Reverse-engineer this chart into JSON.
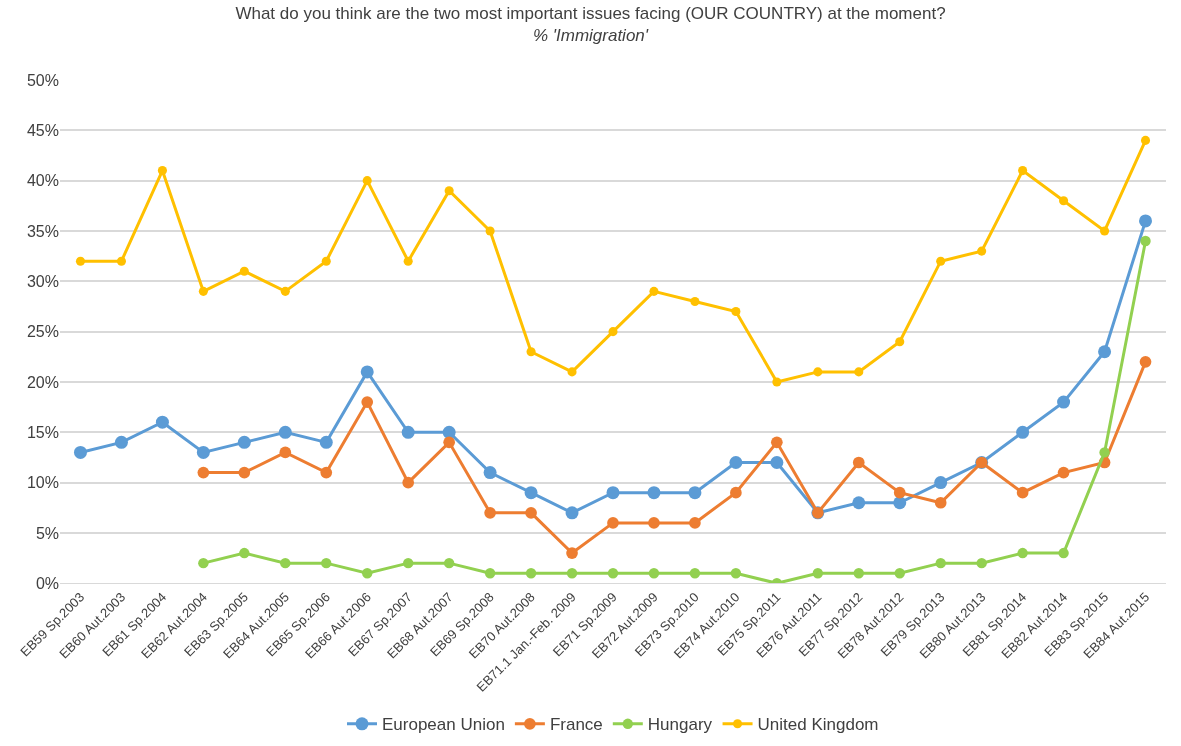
{
  "chart_data": {
    "type": "line",
    "title": "What do you think are the two most important issues facing (OUR COUNTRY) at the moment?",
    "subtitle": "% 'Immigration'",
    "categories": [
      "EB59 Sp.2003",
      "EB60 Aut.2003",
      "EB61 Sp.2004",
      "EB62 Aut.2004",
      "EB63 Sp.2005",
      "EB64 Aut.2005",
      "EB65 Sp.2006",
      "EB66 Aut.2006",
      "EB67 Sp.2007",
      "EB68 Aut.2007",
      "EB69 Sp.2008",
      "EB70 Aut.2008",
      "EB71.1 Jan.-Feb. 2009",
      "EB71 Sp.2009",
      "EB72 Aut.2009",
      "EB73 Sp.2010",
      "EB74 Aut.2010",
      "EB75 Sp.2011",
      "EB76 Aut.2011",
      "EB77 Sp.2012",
      "EB78 Aut.2012",
      "EB79 Sp.2013",
      "EB80 Aut.2013",
      "EB81 Sp.2014",
      "EB82 Aut.2014",
      "EB83 Sp.2015",
      "EB84 Aut.2015"
    ],
    "series": [
      {
        "name": "European Union",
        "color": "#5b9bd5",
        "values": [
          13,
          14,
          16,
          13,
          14,
          15,
          14,
          21,
          15,
          15,
          11,
          9,
          7,
          9,
          9,
          9,
          12,
          12,
          7,
          8,
          8,
          10,
          12,
          15,
          18,
          23,
          36
        ]
      },
      {
        "name": "France",
        "color": "#ed7d31",
        "values": [
          null,
          null,
          null,
          11,
          11,
          13,
          11,
          18,
          10,
          14,
          7,
          7,
          3,
          6,
          6,
          6,
          9,
          14,
          7,
          12,
          9,
          8,
          12,
          9,
          11,
          12,
          22
        ]
      },
      {
        "name": "Hungary",
        "color": "#92d050",
        "values": [
          null,
          null,
          null,
          2,
          3,
          2,
          2,
          1,
          2,
          2,
          1,
          1,
          1,
          1,
          1,
          1,
          1,
          0,
          1,
          1,
          1,
          2,
          2,
          3,
          3,
          13,
          34
        ]
      },
      {
        "name": "United Kingdom",
        "color": "#ffc000",
        "values": [
          32,
          32,
          41,
          29,
          31,
          29,
          32,
          40,
          32,
          39,
          35,
          23,
          21,
          25,
          29,
          28,
          27,
          20,
          21,
          21,
          24,
          32,
          33,
          41,
          38,
          35,
          44
        ]
      }
    ],
    "ylim": [
      0,
      50
    ],
    "yticks": [
      {
        "value": 0,
        "label": "0%"
      },
      {
        "value": 5,
        "label": "5%"
      },
      {
        "value": 10,
        "label": "10%"
      },
      {
        "value": 15,
        "label": "15%"
      },
      {
        "value": 20,
        "label": "20%"
      },
      {
        "value": 25,
        "label": "25%"
      },
      {
        "value": 30,
        "label": "30%"
      },
      {
        "value": 35,
        "label": "35%"
      },
      {
        "value": 40,
        "label": "40%"
      },
      {
        "value": 45,
        "label": "45%"
      },
      {
        "value": 50,
        "label": "50%"
      }
    ],
    "grid": "y",
    "legend": "bottom",
    "marker": "circle",
    "line_style": "solid"
  }
}
